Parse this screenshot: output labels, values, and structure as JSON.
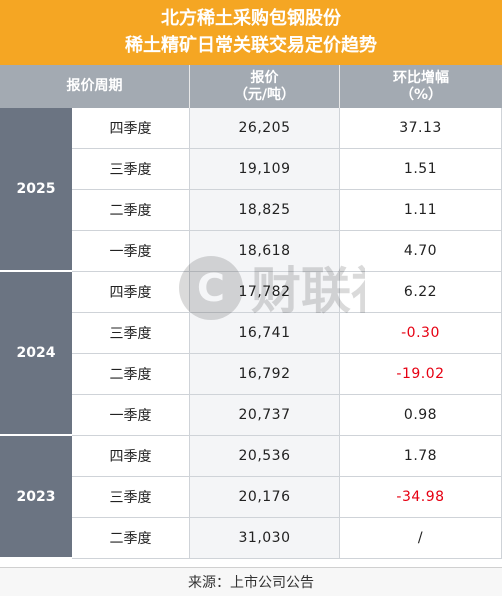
{
  "title": {
    "line1": "北方稀土采购包钢股份",
    "line2": "稀土精矿日常关联交易定价趋势"
  },
  "header": {
    "period": "报价周期",
    "price_l1": "报价",
    "price_l2": "（元/吨）",
    "change_l1": "环比增幅",
    "change_l2": "（%）"
  },
  "years": [
    {
      "label": "2025",
      "rows": [
        {
          "quarter": "四季度",
          "price": "26,205",
          "change": "37.13"
        },
        {
          "quarter": "三季度",
          "price": "19,109",
          "change": "1.51"
        },
        {
          "quarter": "二季度",
          "price": "18,825",
          "change": "1.11"
        },
        {
          "quarter": "一季度",
          "price": "18,618",
          "change": "4.70"
        }
      ]
    },
    {
      "label": "2024",
      "rows": [
        {
          "quarter": "四季度",
          "price": "17,782",
          "change": "6.22"
        },
        {
          "quarter": "三季度",
          "price": "16,741",
          "change": "-0.30",
          "negative": true
        },
        {
          "quarter": "二季度",
          "price": "16,792",
          "change": "-19.02",
          "negative": true
        },
        {
          "quarter": "一季度",
          "price": "20,737",
          "change": "0.98"
        }
      ]
    },
    {
      "label": "2023",
      "rows": [
        {
          "quarter": "四季度",
          "price": "20,536",
          "change": "1.78"
        },
        {
          "quarter": "三季度",
          "price": "20,176",
          "change": "-34.98",
          "negative": true
        },
        {
          "quarter": "二季度",
          "price": "31,030",
          "change": "/"
        }
      ]
    }
  ],
  "footer": "来源：上市公司公告",
  "watermark_text": "财联社",
  "colors": {
    "title_bg": "#f5a623",
    "header_bg": "#a3aab2",
    "year_bg": "#6b7482",
    "negative": "#e60012"
  }
}
